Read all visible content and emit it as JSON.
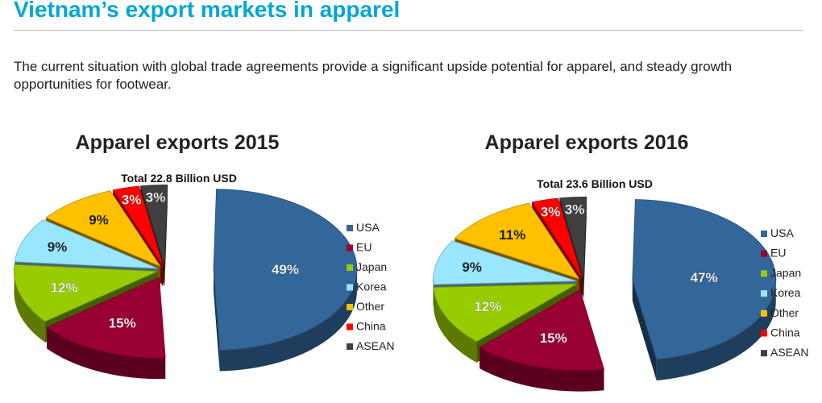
{
  "page": {
    "title": "Vietnam’s export markets in apparel",
    "intro": "The current situation with global trade agreements provide a significant upside potential for apparel, and steady growth opportunities for footwear."
  },
  "colors": {
    "title": "#00a6d6",
    "USA": "#336699",
    "EU": "#990033",
    "Japan": "#99cc00",
    "Korea": "#99e6ff",
    "Other": "#ffc000",
    "China": "#ff0000",
    "ASEAN": "#404040"
  },
  "chart_data": [
    {
      "type": "pie",
      "title": "Apparel exports 2015",
      "subtitle": "Total 22.8 Billion USD",
      "categories": [
        "USA",
        "EU",
        "Japan",
        "Korea",
        "Other",
        "China",
        "ASEAN"
      ],
      "values": [
        49,
        15,
        12,
        9,
        9,
        3,
        3
      ],
      "labels": [
        "49%",
        "15%",
        "12%",
        "9%",
        "9%",
        "3%",
        "3%"
      ],
      "legend": "right"
    },
    {
      "type": "pie",
      "title": "Apparel exports 2016",
      "subtitle": "Total 23.6 Billion USD",
      "categories": [
        "USA",
        "EU",
        "Japan",
        "Korea",
        "Other",
        "China",
        "ASEAN"
      ],
      "values": [
        47,
        15,
        12,
        9,
        11,
        3,
        3
      ],
      "labels": [
        "47%",
        "15%",
        "12%",
        "9%",
        "11%",
        "3%",
        "3%"
      ],
      "legend": "right"
    }
  ]
}
